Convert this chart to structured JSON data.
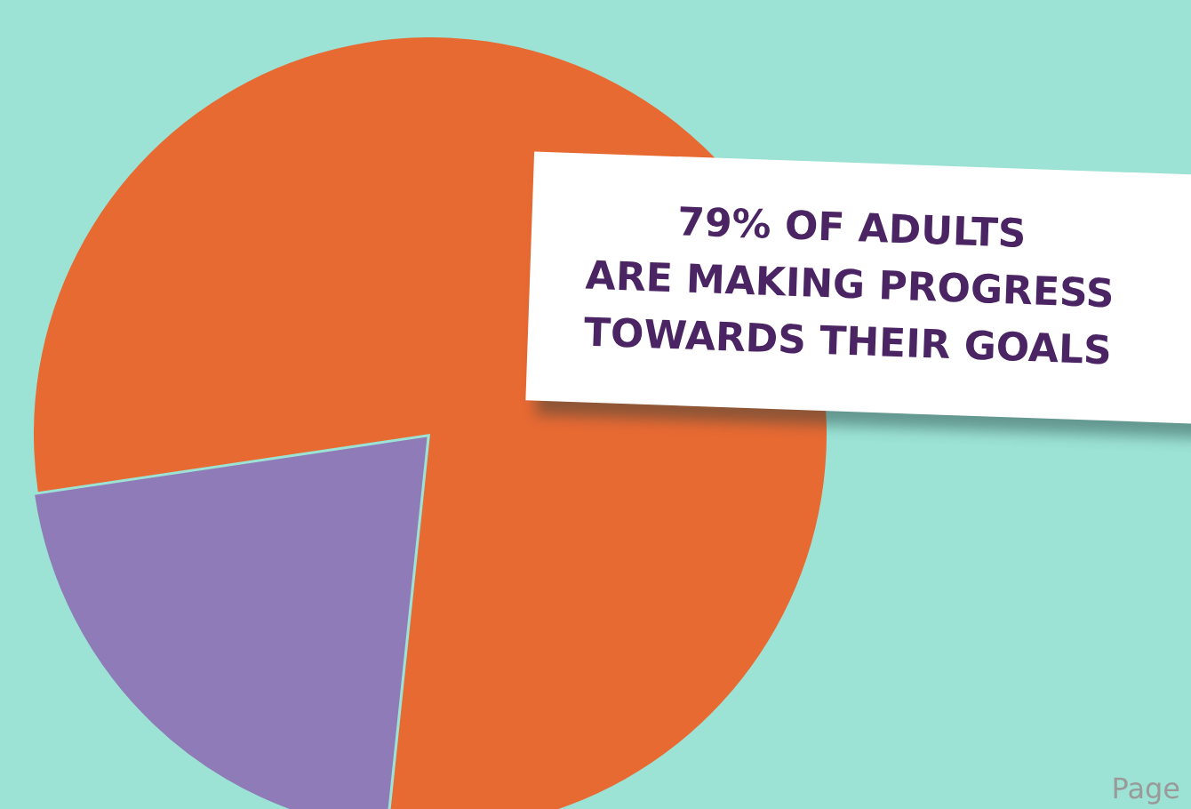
{
  "chart_data": {
    "type": "pie",
    "title": "79% OF ADULTS\nARE MAKING PROGRESS\nTOWARDS THEIR GOALS",
    "categories": [
      null,
      null
    ],
    "values": [
      79,
      21
    ],
    "colors": [
      "#e86a33",
      "#8e7bb8"
    ],
    "annotations": [
      "Page"
    ]
  }
}
